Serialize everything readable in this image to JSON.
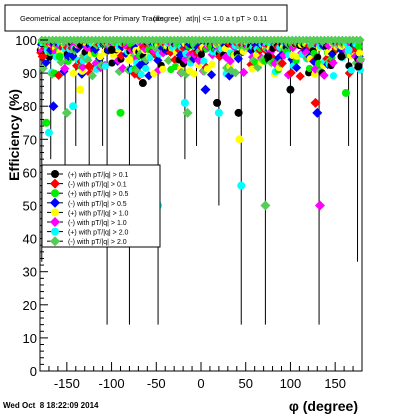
{
  "chart_data": {
    "type": "scatter",
    "title": "Geometrical acceptance for Primary Tracks",
    "title_overlay": "(degree)",
    "title_cut": "at|η| <= 1.0 a t pT > 0.11",
    "xlabel": "φ (degree)",
    "ylabel": "Efficiency (%)",
    "xlim": [
      -180,
      180
    ],
    "ylim": [
      0,
      100
    ],
    "x_ticks": [
      -150,
      -100,
      -50,
      0,
      50,
      100,
      150
    ],
    "y_ticks": [
      0,
      10,
      20,
      30,
      40,
      50,
      60,
      70,
      80,
      90,
      100
    ],
    "grid": false,
    "legend_position": "left-middle",
    "timestamp": "Wed Oct  8 18:22:09 2014",
    "series": [
      {
        "name": "(+) with pT/|q| > 0.1",
        "color": "#000000",
        "shape": "circle"
      },
      {
        "name": "(-) with pT/|q| > 0.1",
        "color": "#ff0000",
        "shape": "diamond"
      },
      {
        "name": "(+) with pT/|q| > 0.5",
        "color": "#00ee00",
        "shape": "circle"
      },
      {
        "name": "(-) with pT/|q| > 0.5",
        "color": "#0000ff",
        "shape": "diamond"
      },
      {
        "name": "(+) with pT/|q| > 1.0",
        "color": "#ffff00",
        "shape": "circle"
      },
      {
        "name": "(-) with pT/|q| > 1.0",
        "color": "#ff00ff",
        "shape": "diamond"
      },
      {
        "name": "(+) with pT/|q| > 2.0",
        "color": "#00ffff",
        "shape": "circle"
      },
      {
        "name": "(-) with pT/|q| > 2.0",
        "color": "#55cc55",
        "shape": "diamond"
      }
    ],
    "highlight_points": [
      {
        "series": 1,
        "x": -177,
        "y": 95
      },
      {
        "series": 2,
        "x": -173,
        "y": 75
      },
      {
        "series": 6,
        "x": -170,
        "y": 72
      },
      {
        "series": 3,
        "x": -165,
        "y": 80
      },
      {
        "series": 2,
        "x": -158,
        "y": 95
      },
      {
        "series": 7,
        "x": -150,
        "y": 78
      },
      {
        "series": 6,
        "x": -143,
        "y": 80
      },
      {
        "series": 4,
        "x": -135,
        "y": 85
      },
      {
        "series": 1,
        "x": -125,
        "y": 92
      },
      {
        "series": 6,
        "x": -103,
        "y": 50
      },
      {
        "series": 0,
        "x": -100,
        "y": 97
      },
      {
        "series": 2,
        "x": -90,
        "y": 78
      },
      {
        "series": 4,
        "x": -80,
        "y": 94
      },
      {
        "series": 0,
        "x": -65,
        "y": 87
      },
      {
        "series": 6,
        "x": -48,
        "y": 50
      },
      {
        "series": 6,
        "x": -18,
        "y": 81
      },
      {
        "series": 7,
        "x": -15,
        "y": 78
      },
      {
        "series": 3,
        "x": 5,
        "y": 85
      },
      {
        "series": 0,
        "x": 18,
        "y": 81
      },
      {
        "series": 6,
        "x": 20,
        "y": 78
      },
      {
        "series": 4,
        "x": 43,
        "y": 70
      },
      {
        "series": 6,
        "x": 45,
        "y": 56
      },
      {
        "series": 0,
        "x": 42,
        "y": 78
      },
      {
        "series": 7,
        "x": 72,
        "y": 50
      },
      {
        "series": 0,
        "x": 75,
        "y": 95
      },
      {
        "series": 0,
        "x": 100,
        "y": 85
      },
      {
        "series": 5,
        "x": 133,
        "y": 50
      },
      {
        "series": 3,
        "x": 130,
        "y": 78
      },
      {
        "series": 1,
        "x": 128,
        "y": 81
      },
      {
        "series": 0,
        "x": 157,
        "y": 95
      },
      {
        "series": 2,
        "x": 162,
        "y": 84
      },
      {
        "series": 6,
        "x": 165,
        "y": 97
      },
      {
        "series": 0,
        "x": 176,
        "y": 92
      }
    ],
    "low_error_bars": [
      {
        "x": -178,
        "low": 33
      },
      {
        "x": -168,
        "low": 64
      },
      {
        "x": -152,
        "low": 50
      },
      {
        "x": -140,
        "low": 68
      },
      {
        "x": -125,
        "low": 50
      },
      {
        "x": -110,
        "low": 68
      },
      {
        "x": -105,
        "low": 14
      },
      {
        "x": -80,
        "low": 14
      },
      {
        "x": -48,
        "low": 14
      },
      {
        "x": -18,
        "low": 64
      },
      {
        "x": -5,
        "low": 68
      },
      {
        "x": 20,
        "low": 50
      },
      {
        "x": 45,
        "low": 14
      },
      {
        "x": 72,
        "low": 14
      },
      {
        "x": 100,
        "low": 68
      },
      {
        "x": 132,
        "low": 14
      },
      {
        "x": 165,
        "low": 68
      },
      {
        "x": 175,
        "low": 33
      }
    ]
  }
}
